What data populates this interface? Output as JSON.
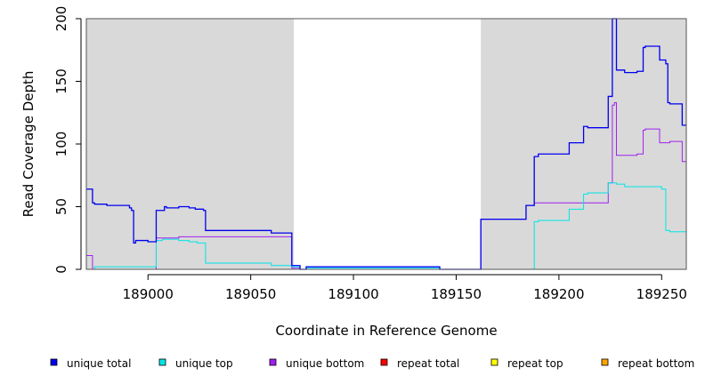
{
  "chart_data": {
    "type": "line",
    "title": "",
    "xlabel": "Coordinate in Reference Genome",
    "ylabel": "Read Coverage Depth",
    "xlim": [
      188970,
      189262
    ],
    "ylim": [
      0,
      200
    ],
    "x_ticks": [
      189000,
      189050,
      189100,
      189150,
      189200,
      189250
    ],
    "y_ticks": [
      0,
      50,
      100,
      150,
      200
    ],
    "shaded_regions": [
      [
        188970,
        189071
      ],
      [
        189162,
        189262
      ]
    ],
    "shade_color": "#d9d9d9",
    "legend_position": "bottom",
    "series": [
      {
        "name": "unique total",
        "color": "#0000ee",
        "points": [
          [
            188970,
            64
          ],
          [
            188973,
            64
          ],
          [
            188973,
            53
          ],
          [
            188974,
            53
          ],
          [
            188974,
            52
          ],
          [
            188980,
            52
          ],
          [
            188980,
            51
          ],
          [
            188991,
            51
          ],
          [
            188991,
            49
          ],
          [
            188992,
            49
          ],
          [
            188992,
            47
          ],
          [
            188993,
            47
          ],
          [
            188993,
            21
          ],
          [
            188994,
            21
          ],
          [
            188994,
            23
          ],
          [
            189000,
            23
          ],
          [
            189000,
            22
          ],
          [
            189004,
            22
          ],
          [
            189004,
            47
          ],
          [
            189008,
            47
          ],
          [
            189008,
            50
          ],
          [
            189009,
            50
          ],
          [
            189009,
            49
          ],
          [
            189015,
            49
          ],
          [
            189015,
            50
          ],
          [
            189020,
            50
          ],
          [
            189020,
            49
          ],
          [
            189023,
            49
          ],
          [
            189023,
            48
          ],
          [
            189027,
            48
          ],
          [
            189027,
            47
          ],
          [
            189028,
            47
          ],
          [
            189028,
            31
          ],
          [
            189060,
            31
          ],
          [
            189060,
            29
          ],
          [
            189070,
            29
          ],
          [
            189070,
            3
          ],
          [
            189074,
            3
          ],
          [
            189074,
            0
          ],
          [
            189077,
            0
          ],
          [
            189077,
            2
          ],
          [
            189142,
            2
          ],
          [
            189142,
            0
          ],
          [
            189162,
            0
          ],
          [
            189162,
            40
          ],
          [
            189184,
            40
          ],
          [
            189184,
            51
          ],
          [
            189188,
            51
          ],
          [
            189188,
            90
          ],
          [
            189190,
            90
          ],
          [
            189190,
            92
          ],
          [
            189205,
            92
          ],
          [
            189205,
            101
          ],
          [
            189212,
            101
          ],
          [
            189212,
            114
          ],
          [
            189214,
            114
          ],
          [
            189214,
            113
          ],
          [
            189224,
            113
          ],
          [
            189224,
            138
          ],
          [
            189226,
            138
          ],
          [
            189226,
            200
          ],
          [
            189228,
            200
          ],
          [
            189228,
            159
          ],
          [
            189232,
            159
          ],
          [
            189232,
            157
          ],
          [
            189238,
            157
          ],
          [
            189238,
            158
          ],
          [
            189241,
            158
          ],
          [
            189241,
            177
          ],
          [
            189242,
            177
          ],
          [
            189242,
            178
          ],
          [
            189249,
            178
          ],
          [
            189249,
            167
          ],
          [
            189252,
            167
          ],
          [
            189252,
            164
          ],
          [
            189253,
            164
          ],
          [
            189253,
            133
          ],
          [
            189254,
            133
          ],
          [
            189254,
            132
          ],
          [
            189260,
            132
          ],
          [
            189260,
            115
          ],
          [
            189262,
            115
          ]
        ]
      },
      {
        "name": "unique top",
        "color": "#00e5e5",
        "points": [
          [
            188970,
            0
          ],
          [
            188974,
            0
          ],
          [
            188974,
            2
          ],
          [
            189004,
            2
          ],
          [
            189004,
            23
          ],
          [
            189007,
            23
          ],
          [
            189007,
            24
          ],
          [
            189015,
            24
          ],
          [
            189015,
            23
          ],
          [
            189020,
            23
          ],
          [
            189020,
            22
          ],
          [
            189024,
            22
          ],
          [
            189024,
            21
          ],
          [
            189028,
            21
          ],
          [
            189028,
            5
          ],
          [
            189060,
            5
          ],
          [
            189060,
            3
          ],
          [
            189070,
            3
          ],
          [
            189070,
            2
          ],
          [
            189074,
            2
          ],
          [
            189074,
            0
          ],
          [
            189077,
            0
          ],
          [
            189077,
            1
          ],
          [
            189142,
            1
          ],
          [
            189142,
            0
          ],
          [
            189188,
            0
          ],
          [
            189188,
            38
          ],
          [
            189190,
            38
          ],
          [
            189190,
            39
          ],
          [
            189205,
            39
          ],
          [
            189205,
            48
          ],
          [
            189212,
            48
          ],
          [
            189212,
            60
          ],
          [
            189214,
            60
          ],
          [
            189214,
            61
          ],
          [
            189224,
            61
          ],
          [
            189224,
            69
          ],
          [
            189228,
            69
          ],
          [
            189228,
            68
          ],
          [
            189232,
            68
          ],
          [
            189232,
            66
          ],
          [
            189250,
            66
          ],
          [
            189250,
            64
          ],
          [
            189252,
            64
          ],
          [
            189252,
            31
          ],
          [
            189254,
            31
          ],
          [
            189254,
            30
          ],
          [
            189262,
            30
          ]
        ]
      },
      {
        "name": "unique bottom",
        "color": "#a020f0",
        "points": [
          [
            188970,
            11
          ],
          [
            188973,
            11
          ],
          [
            188973,
            0
          ],
          [
            189004,
            0
          ],
          [
            189004,
            25
          ],
          [
            189015,
            25
          ],
          [
            189015,
            26
          ],
          [
            189070,
            26
          ],
          [
            189070,
            1
          ],
          [
            189074,
            1
          ],
          [
            189074,
            0
          ],
          [
            189162,
            0
          ],
          [
            189162,
            40
          ],
          [
            189184,
            40
          ],
          [
            189184,
            51
          ],
          [
            189188,
            51
          ],
          [
            189188,
            53
          ],
          [
            189224,
            53
          ],
          [
            189224,
            69
          ],
          [
            189226,
            69
          ],
          [
            189226,
            131
          ],
          [
            189227,
            131
          ],
          [
            189227,
            133
          ],
          [
            189228,
            133
          ],
          [
            189228,
            91
          ],
          [
            189238,
            91
          ],
          [
            189238,
            92
          ],
          [
            189241,
            92
          ],
          [
            189241,
            111
          ],
          [
            189242,
            111
          ],
          [
            189242,
            112
          ],
          [
            189249,
            112
          ],
          [
            189249,
            101
          ],
          [
            189254,
            101
          ],
          [
            189254,
            102
          ],
          [
            189260,
            102
          ],
          [
            189260,
            86
          ],
          [
            189262,
            86
          ]
        ]
      },
      {
        "name": "repeat total",
        "color": "#ff0000",
        "points": [
          [
            188970,
            0
          ],
          [
            189262,
            0
          ]
        ]
      },
      {
        "name": "repeat top",
        "color": "#ffff00",
        "points": [
          [
            188970,
            0
          ],
          [
            189262,
            0
          ]
        ]
      },
      {
        "name": "repeat bottom",
        "color": "#ffa500",
        "points": [
          [
            188970,
            0
          ],
          [
            189262,
            0
          ]
        ]
      }
    ]
  }
}
